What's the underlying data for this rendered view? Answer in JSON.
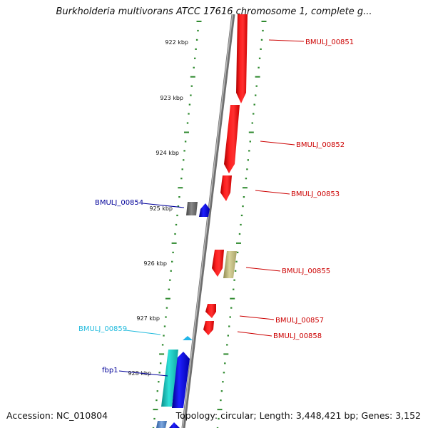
{
  "title": "Burkholderia multivorans ATCC 17616 chromosome 1, complete g...",
  "footer": {
    "accession": "Accession: NC_010804",
    "topology": "Topology: circular; Length: 3,448,421 bp; Genes: 3,152"
  },
  "ticks": [
    "922 kbp",
    "923 kbp",
    "924 kbp",
    "925 kbp",
    "926 kbp",
    "927 kbp",
    "928 kbp"
  ],
  "gene_labels": [
    "BMULJ_00851",
    "BMULJ_00852",
    "BMULJ_00853",
    "BMULJ_00854",
    "BMULJ_00855",
    "BMULJ_00857",
    "BMULJ_00858",
    "BMULJ_00859",
    "fbp1"
  ],
  "colors": {
    "forward": "#ff0000",
    "reverse": "#0000ff",
    "backbone": "#888888",
    "ruler": "#2f8a2f",
    "label_red": "#cc0000",
    "label_blue": "#000099",
    "label_cyan": "#22bbdd",
    "khaki": "#cfc88a",
    "grey_gene": "#777777",
    "cyan_gene": "#22d0c8"
  }
}
